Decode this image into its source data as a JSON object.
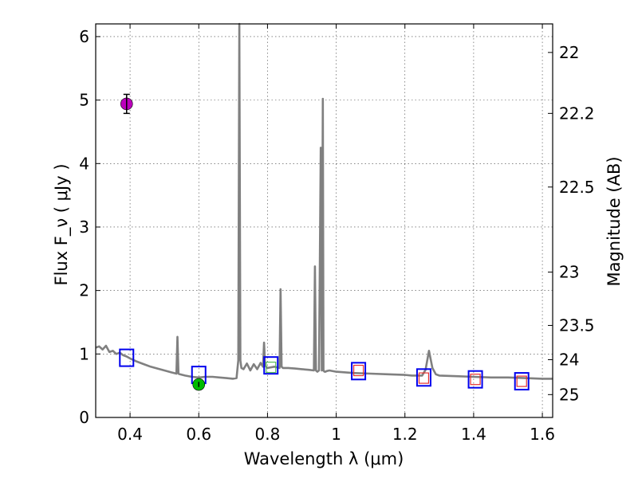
{
  "chart_data": {
    "type": "scatter",
    "title": "",
    "xlabel": "Wavelength  λ (μm)",
    "ylabel": "Flux  F_ν  ( μJy )",
    "ylabel_right": "Magnitude (AB)",
    "xlim": [
      0.3,
      1.63
    ],
    "ylim": [
      0,
      6.2
    ],
    "x_ticks": [
      0.4,
      0.6,
      0.8,
      1.0,
      1.2,
      1.4,
      1.6
    ],
    "x_tick_labels": [
      "0.4",
      "0.6",
      "0.8",
      "1",
      "1.2",
      "1.4",
      "1.6"
    ],
    "y_ticks": [
      0,
      1,
      2,
      3,
      4,
      5,
      6
    ],
    "y_tick_labels": [
      "0",
      "1",
      "2",
      "3",
      "4",
      "5",
      "6"
    ],
    "right_ticks": [
      {
        "label": "22",
        "flux": 5.75
      },
      {
        "label": "22.2",
        "flux": 4.79
      },
      {
        "label": "22.5",
        "flux": 3.63
      },
      {
        "label": "23",
        "flux": 2.29
      },
      {
        "label": "23.5",
        "flux": 1.45
      },
      {
        "label": "24",
        "flux": 0.91
      },
      {
        "label": "25",
        "flux": 0.36
      }
    ],
    "grid": true,
    "series": [
      {
        "name": "model spectrum",
        "kind": "line",
        "color": "#808080",
        "x": [
          0.3,
          0.31,
          0.32,
          0.33,
          0.34,
          0.35,
          0.36,
          0.37,
          0.38,
          0.39,
          0.4,
          0.42,
          0.44,
          0.46,
          0.48,
          0.5,
          0.52,
          0.535,
          0.538,
          0.541,
          0.545,
          0.56,
          0.58,
          0.6,
          0.62,
          0.64,
          0.66,
          0.68,
          0.7,
          0.71,
          0.715,
          0.718,
          0.721,
          0.724,
          0.73,
          0.74,
          0.75,
          0.76,
          0.77,
          0.78,
          0.787,
          0.79,
          0.793,
          0.796,
          0.8,
          0.82,
          0.835,
          0.838,
          0.841,
          0.845,
          0.86,
          0.88,
          0.9,
          0.92,
          0.935,
          0.938,
          0.941,
          0.945,
          0.95,
          0.955,
          0.958,
          0.961,
          0.963,
          0.966,
          0.969,
          0.972,
          0.98,
          1.0,
          1.05,
          1.1,
          1.15,
          1.2,
          1.22,
          1.25,
          1.26,
          1.27,
          1.28,
          1.29,
          1.3,
          1.35,
          1.4,
          1.45,
          1.5,
          1.55,
          1.6,
          1.63
        ],
        "y": [
          1.1,
          1.12,
          1.07,
          1.13,
          1.03,
          1.05,
          1.0,
          1.02,
          0.98,
          0.96,
          0.93,
          0.88,
          0.84,
          0.8,
          0.77,
          0.74,
          0.71,
          0.69,
          1.27,
          0.69,
          0.68,
          0.66,
          0.64,
          0.63,
          0.64,
          0.64,
          0.63,
          0.62,
          0.61,
          0.62,
          0.9,
          6.2,
          0.9,
          0.78,
          0.76,
          0.85,
          0.74,
          0.84,
          0.76,
          0.86,
          0.8,
          1.18,
          0.82,
          0.8,
          0.78,
          0.8,
          0.78,
          2.02,
          0.8,
          0.78,
          0.78,
          0.77,
          0.76,
          0.75,
          0.74,
          2.38,
          0.74,
          0.72,
          0.74,
          4.25,
          0.74,
          5.02,
          0.74,
          0.72,
          0.72,
          0.73,
          0.74,
          0.72,
          0.7,
          0.69,
          0.68,
          0.67,
          0.66,
          0.66,
          0.75,
          1.05,
          0.78,
          0.68,
          0.66,
          0.65,
          0.64,
          0.63,
          0.63,
          0.62,
          0.61,
          0.61
        ]
      },
      {
        "name": "model photometry",
        "kind": "square",
        "color": "#0000ee",
        "x": [
          0.39,
          0.6,
          0.81,
          1.065,
          1.255,
          1.405,
          1.54
        ],
        "y": [
          0.94,
          0.67,
          0.82,
          0.73,
          0.63,
          0.6,
          0.57
        ]
      },
      {
        "name": "measured photometry",
        "kind": "open_square",
        "color": "#e63030",
        "x": [
          1.065,
          1.255,
          1.405,
          1.54
        ],
        "y": [
          0.74,
          0.62,
          0.6,
          0.57
        ]
      },
      {
        "name": "photometry (0.81)",
        "kind": "open_square",
        "color": "#55bb55",
        "x": [
          0.81
        ],
        "y": [
          0.79
        ]
      },
      {
        "name": "detection (magenta)",
        "kind": "point",
        "color": "#bb00bb",
        "x": [
          0.39
        ],
        "y": [
          4.94
        ],
        "yerr": [
          0.15
        ]
      },
      {
        "name": "detection (green)",
        "kind": "point",
        "color": "#00bb00",
        "x": [
          0.6
        ],
        "y": [
          0.52
        ],
        "yerr": [
          0.04
        ]
      }
    ]
  }
}
